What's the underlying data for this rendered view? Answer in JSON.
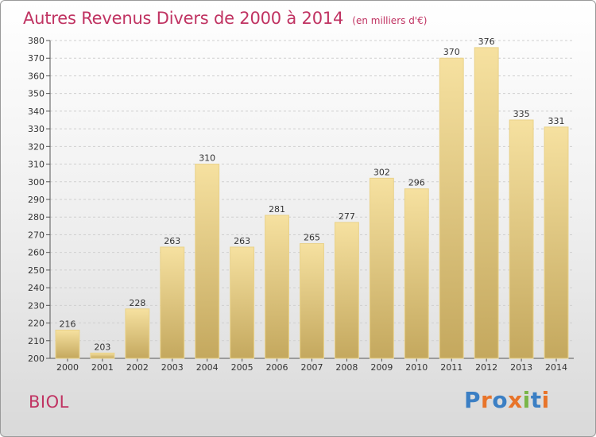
{
  "header": {
    "title": "Autres Revenus Divers de 2000 à 2014",
    "unit": "(en milliers d'€)"
  },
  "footer": {
    "commune": "BIOL",
    "logo": "Proxiti"
  },
  "colors": {
    "title": "#c03362",
    "bar_light": "#f6e1a0",
    "bar_dark": "#c4a85e",
    "grid": "#cfcfcf",
    "logo_letters": [
      "#3b7fc4",
      "#e8742a",
      "#3b7fc4",
      "#e8742a",
      "#7ab648",
      "#3b7fc4",
      "#e8742a"
    ]
  },
  "chart_data": {
    "type": "bar",
    "title": "Autres Revenus Divers de 2000 à 2014",
    "xlabel": "",
    "ylabel": "",
    "categories": [
      "2000",
      "2001",
      "2002",
      "2003",
      "2004",
      "2005",
      "2006",
      "2007",
      "2008",
      "2009",
      "2010",
      "2011",
      "2012",
      "2013",
      "2014"
    ],
    "values": [
      216,
      203,
      228,
      263,
      310,
      263,
      281,
      265,
      277,
      302,
      296,
      370,
      376,
      335,
      331
    ],
    "ylim": [
      200,
      380
    ],
    "yticks": [
      200,
      210,
      220,
      230,
      240,
      250,
      260,
      270,
      280,
      290,
      300,
      310,
      320,
      330,
      340,
      350,
      360,
      370,
      380
    ],
    "grid": true,
    "legend": "none"
  }
}
